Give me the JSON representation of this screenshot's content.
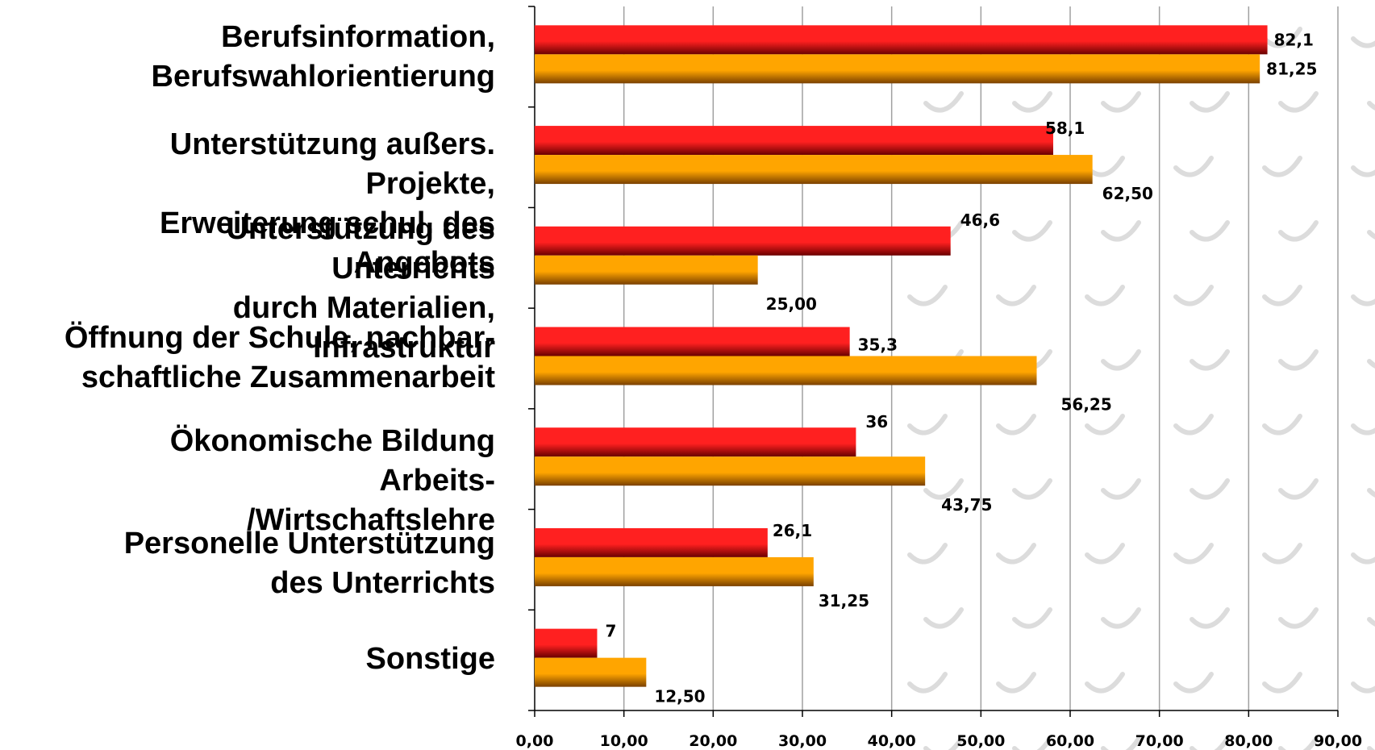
{
  "colors": {
    "series1_top": "#ff2020",
    "series1_bottom": "#6a0000",
    "series2_top": "#ffa500",
    "series2_bottom": "#7a4000",
    "grid": "#a0a0a0",
    "axis": "#000000"
  },
  "chart_data": {
    "type": "bar",
    "orientation": "horizontal",
    "title": "",
    "xlabel": "",
    "ylabel": "",
    "xlim": [
      0,
      90
    ],
    "x_ticks": [
      "0,00",
      "10,00",
      "20,00",
      "30,00",
      "40,00",
      "50,00",
      "60,00",
      "70,00",
      "80,00",
      "90,00"
    ],
    "grid": true,
    "legend": "none",
    "categories": [
      "Berufsinformation,\nBerufswahlorientierung",
      "Unterstützung außers.\nProjekte,\nErweiterung schul. des\nAngebots",
      "Unterstützung des\nUnterrichts\ndurch Materialien,\nInfrastruktur",
      "Öffnung der Schule, nachbar-\nschaftliche Zusammenarbeit",
      "Ökonomische Bildung\nArbeits-\n/Wirtschaftslehre",
      "Personelle Unterstützung\ndes Unterrichts",
      "Sonstige"
    ],
    "series": [
      {
        "values": [
          82.1,
          58.1,
          46.6,
          35.3,
          36,
          26.1,
          7
        ],
        "labels": [
          "82,1",
          "58,1",
          "46,6",
          "35,3",
          "36",
          "26,1",
          "7"
        ]
      },
      {
        "values": [
          81.25,
          62.5,
          25.0,
          56.25,
          43.75,
          31.25,
          12.5
        ],
        "labels": [
          "81,25",
          "62,50",
          "25,00",
          "56,25",
          "43,75",
          "31,25",
          "12,50"
        ]
      }
    ]
  }
}
